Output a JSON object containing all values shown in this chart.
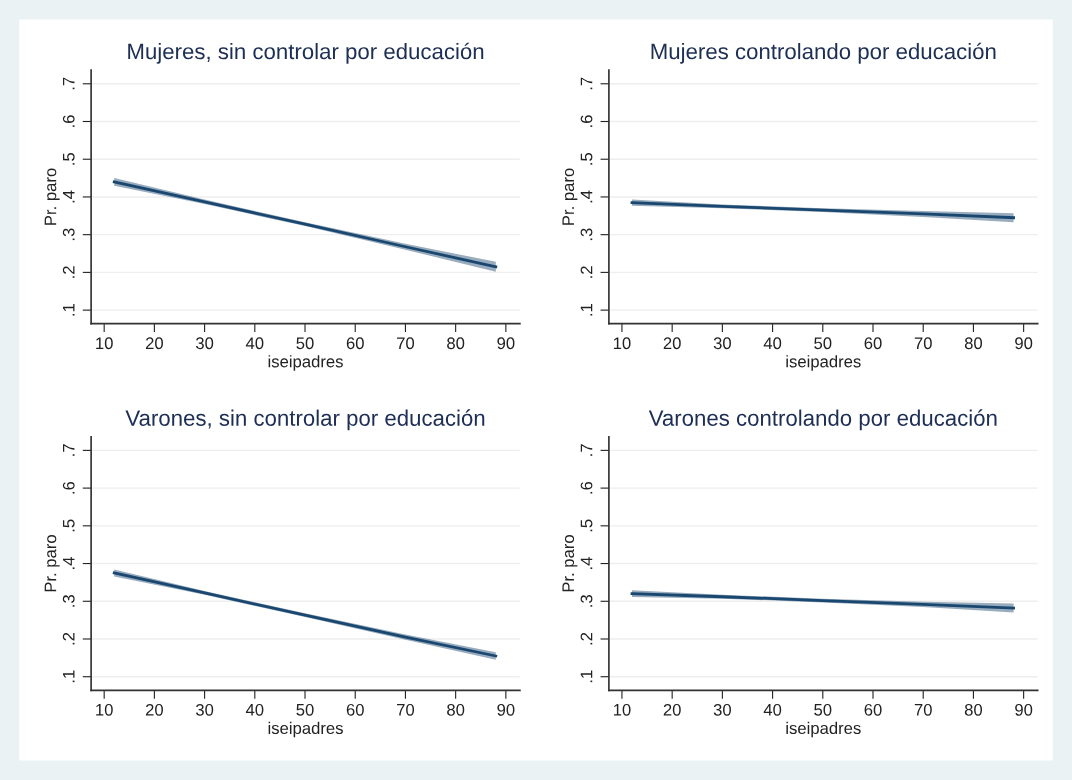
{
  "chart_data": [
    {
      "type": "line",
      "title": "Mujeres, sin controlar por educación",
      "xlabel": "iseipadres",
      "ylabel": "Pr. paro",
      "marker": "none",
      "grid": "y",
      "x": [
        12,
        30,
        50,
        70,
        88
      ],
      "xlim": [
        7.4,
        92.8
      ],
      "xticks": [
        10,
        20,
        30,
        40,
        50,
        60,
        70,
        80,
        90
      ],
      "ylim": [
        0.064,
        0.736
      ],
      "yticks": [
        {
          "value": 0.1,
          "label": ".1"
        },
        {
          "value": 0.2,
          "label": ".2"
        },
        {
          "value": 0.3,
          "label": ".3"
        },
        {
          "value": 0.4,
          "label": ".4"
        },
        {
          "value": 0.5,
          "label": ".5"
        },
        {
          "value": 0.6,
          "label": ".6"
        },
        {
          "value": 0.7,
          "label": ".7"
        }
      ],
      "series": [
        {
          "color": "#1a476f",
          "values": [
            0.44,
            0.387,
            0.328,
            0.268,
            0.215
          ],
          "lower": [
            0.43,
            0.381,
            0.323,
            0.26,
            0.202
          ],
          "upper": [
            0.45,
            0.393,
            0.333,
            0.276,
            0.228
          ]
        }
      ]
    },
    {
      "type": "line",
      "title": "Mujeres controlando por educación",
      "xlabel": "iseipadres",
      "ylabel": "Pr. paro",
      "marker": "none",
      "grid": "y",
      "x": [
        12,
        30,
        50,
        70,
        88
      ],
      "xlim": [
        7.4,
        92.8
      ],
      "xticks": [
        10,
        20,
        30,
        40,
        50,
        60,
        70,
        80,
        90
      ],
      "ylim": [
        0.064,
        0.736
      ],
      "yticks": [
        {
          "value": 0.1,
          "label": ".1"
        },
        {
          "value": 0.2,
          "label": ".2"
        },
        {
          "value": 0.3,
          "label": ".3"
        },
        {
          "value": 0.4,
          "label": ".4"
        },
        {
          "value": 0.5,
          "label": ".5"
        },
        {
          "value": 0.6,
          "label": ".6"
        },
        {
          "value": 0.7,
          "label": ".7"
        }
      ],
      "series": [
        {
          "color": "#1a476f",
          "values": [
            0.385,
            0.375,
            0.365,
            0.355,
            0.345
          ],
          "lower": [
            0.377,
            0.37,
            0.36,
            0.347,
            0.333
          ],
          "upper": [
            0.393,
            0.38,
            0.37,
            0.363,
            0.357
          ]
        }
      ]
    },
    {
      "type": "line",
      "title": "Varones, sin controlar por educación",
      "xlabel": "iseipadres",
      "ylabel": "Pr. paro",
      "marker": "none",
      "grid": "y",
      "x": [
        12,
        30,
        50,
        70,
        88
      ],
      "xlim": [
        7.4,
        92.8
      ],
      "xticks": [
        10,
        20,
        30,
        40,
        50,
        60,
        70,
        80,
        90
      ],
      "ylim": [
        0.064,
        0.736
      ],
      "yticks": [
        {
          "value": 0.1,
          "label": ".1"
        },
        {
          "value": 0.2,
          "label": ".2"
        },
        {
          "value": 0.3,
          "label": ".3"
        },
        {
          "value": 0.4,
          "label": ".4"
        },
        {
          "value": 0.5,
          "label": ".5"
        },
        {
          "value": 0.6,
          "label": ".6"
        },
        {
          "value": 0.7,
          "label": ".7"
        }
      ],
      "series": [
        {
          "color": "#1a476f",
          "values": [
            0.375,
            0.322,
            0.263,
            0.205,
            0.155
          ],
          "lower": [
            0.366,
            0.317,
            0.258,
            0.198,
            0.145
          ],
          "upper": [
            0.384,
            0.327,
            0.268,
            0.212,
            0.165
          ]
        }
      ]
    },
    {
      "type": "line",
      "title": "Varones controlando por educación",
      "xlabel": "iseipadres",
      "ylabel": "Pr. paro",
      "marker": "none",
      "grid": "y",
      "x": [
        12,
        30,
        50,
        70,
        88
      ],
      "xlim": [
        7.4,
        92.8
      ],
      "xticks": [
        10,
        20,
        30,
        40,
        50,
        60,
        70,
        80,
        90
      ],
      "ylim": [
        0.064,
        0.736
      ],
      "yticks": [
        {
          "value": 0.1,
          "label": ".1"
        },
        {
          "value": 0.2,
          "label": ".2"
        },
        {
          "value": 0.3,
          "label": ".3"
        },
        {
          "value": 0.4,
          "label": ".4"
        },
        {
          "value": 0.5,
          "label": ".5"
        },
        {
          "value": 0.6,
          "label": ".6"
        },
        {
          "value": 0.7,
          "label": ".7"
        }
      ],
      "series": [
        {
          "color": "#1a476f",
          "values": [
            0.32,
            0.312,
            0.302,
            0.292,
            0.282
          ],
          "lower": [
            0.311,
            0.307,
            0.297,
            0.285,
            0.27
          ],
          "upper": [
            0.329,
            0.317,
            0.307,
            0.299,
            0.294
          ]
        }
      ]
    }
  ]
}
